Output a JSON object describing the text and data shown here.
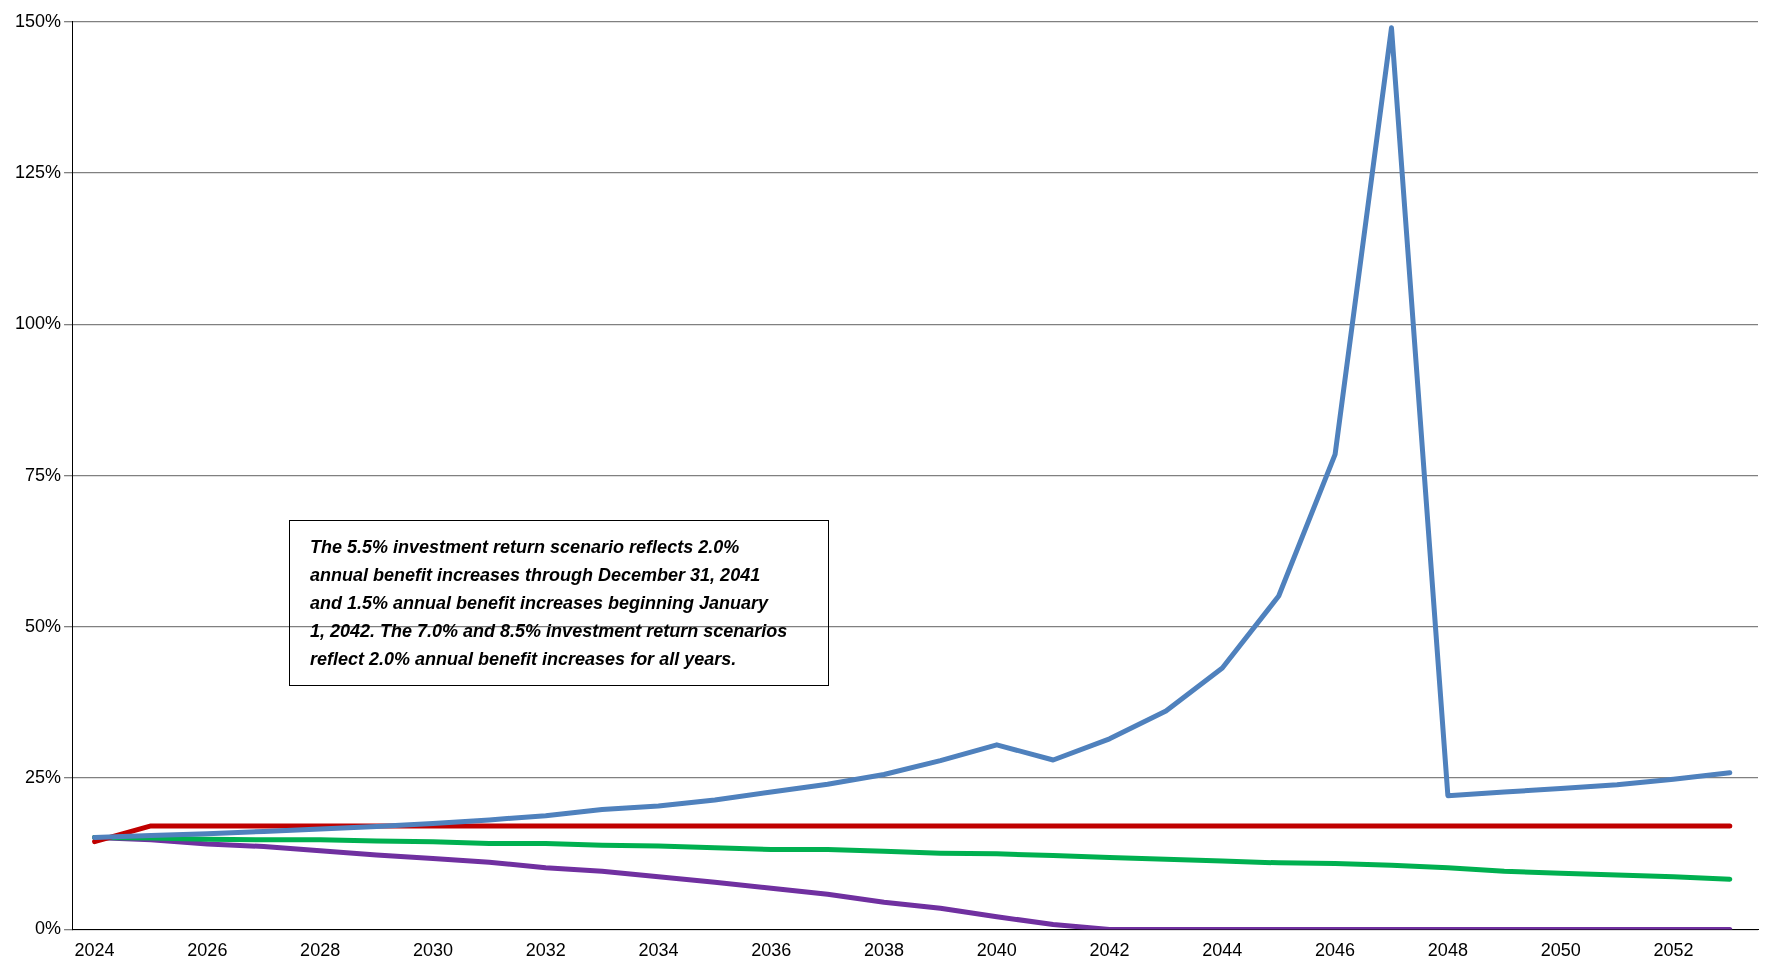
{
  "chart_data": {
    "type": "line",
    "x": [
      2024,
      2025,
      2026,
      2027,
      2028,
      2029,
      2030,
      2031,
      2032,
      2033,
      2034,
      2035,
      2036,
      2037,
      2038,
      2039,
      2040,
      2041,
      2042,
      2043,
      2044,
      2045,
      2046,
      2047,
      2048,
      2049,
      2050,
      2051,
      2052,
      2053
    ],
    "series": [
      {
        "color": "#4f81bd",
        "values": [
          15.2,
          15.5,
          15.8,
          16.2,
          16.6,
          17.0,
          17.5,
          18.1,
          18.8,
          19.8,
          20.4,
          21.4,
          22.7,
          24.0,
          25.6,
          27.9,
          30.5,
          28.0,
          31.5,
          36.1,
          43.2,
          55.1,
          78.5,
          149,
          22.1,
          22.7,
          23.3,
          23.9,
          24.8,
          25.9
        ]
      },
      {
        "color": "#c00000",
        "values": [
          14.5,
          17.1,
          17.1,
          17.1,
          17.1,
          17.1,
          17.1,
          17.1,
          17.1,
          17.1,
          17.1,
          17.1,
          17.1,
          17.1,
          17.1,
          17.1,
          17.1,
          17.1,
          17.1,
          17.1,
          17.1,
          17.1,
          17.1,
          17.1,
          17.1,
          17.1,
          17.1,
          17.1,
          17.1,
          17.1
        ]
      },
      {
        "color": "#00b050",
        "values": [
          15.2,
          15.1,
          14.9,
          14.8,
          14.8,
          14.6,
          14.5,
          14.2,
          14.2,
          13.9,
          13.8,
          13.5,
          13.2,
          13.2,
          12.9,
          12.6,
          12.5,
          12.2,
          11.9,
          11.6,
          11.3,
          11.0,
          10.9,
          10.6,
          10.2,
          9.6,
          9.3,
          9.0,
          8.7,
          8.3
        ]
      },
      {
        "color": "#7030a0",
        "values": [
          15.2,
          14.8,
          14.1,
          13.7,
          13.0,
          12.3,
          11.7,
          11.1,
          10.2,
          9.6,
          8.7,
          7.8,
          6.8,
          5.8,
          4.5,
          3.5,
          2.1,
          0.8,
          0,
          0,
          0,
          0,
          0,
          0,
          0,
          0,
          0,
          0,
          0,
          0
        ]
      }
    ],
    "xlim": [
      2023.6,
      2053.5
    ],
    "xticks": [
      2024,
      2026,
      2028,
      2030,
      2032,
      2034,
      2036,
      2038,
      2040,
      2042,
      2044,
      2046,
      2048,
      2050,
      2052
    ],
    "ylim": [
      0,
      150
    ],
    "yticks": [
      {
        "value": 0,
        "label": "0%"
      },
      {
        "value": 25,
        "label": "25%"
      },
      {
        "value": 50,
        "label": "50%"
      },
      {
        "value": 75,
        "label": "75%"
      },
      {
        "value": 100,
        "label": "100%"
      },
      {
        "value": 125,
        "label": "125%"
      },
      {
        "value": 150,
        "label": "150%"
      }
    ],
    "grid": "y",
    "legend": false,
    "marker": "none",
    "line_style": "solid",
    "annotations": [
      "The 5.5% investment return scenario reflects 2.0% annual benefit increases through December 31, 2041 and 1.5% annual benefit increases beginning January 1, 2042. The 7.0% and 8.5% investment return scenarios reflect 2.0% annual benefit increases for all years."
    ]
  }
}
